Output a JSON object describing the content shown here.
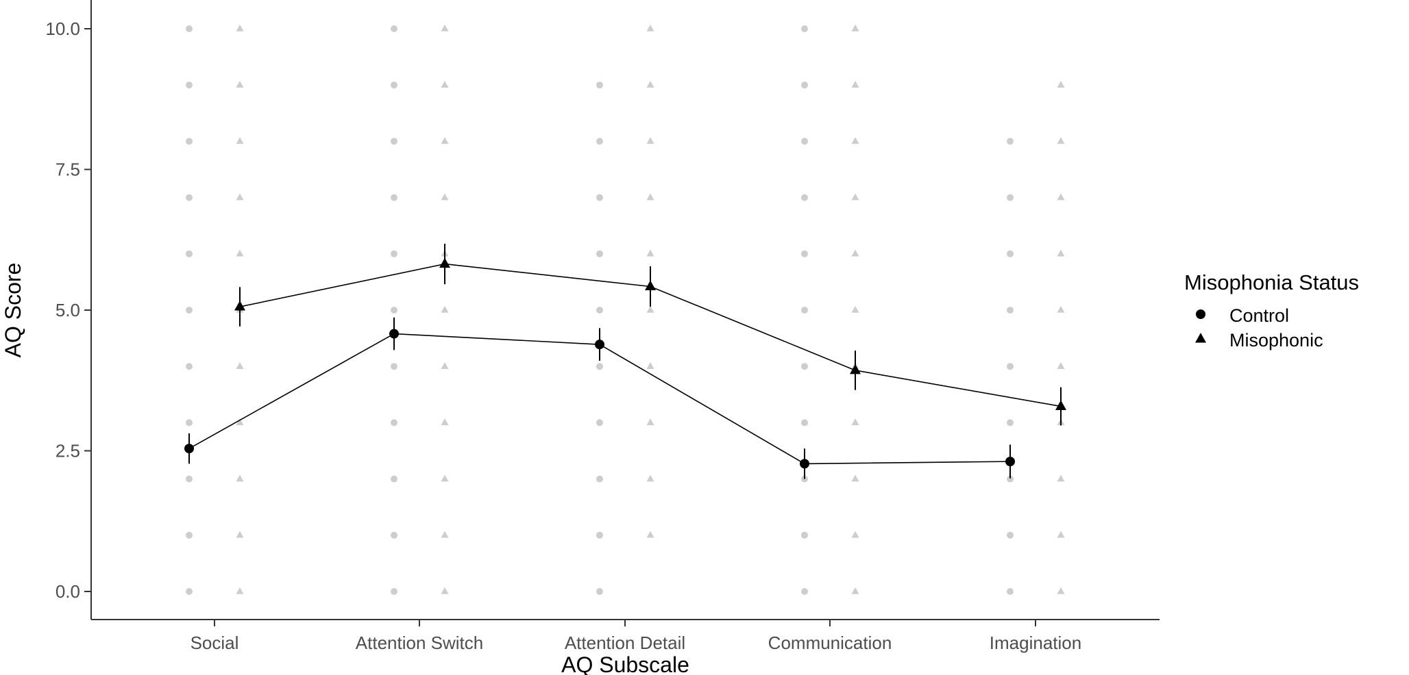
{
  "chart_data": {
    "type": "scatter",
    "title": "",
    "xlabel": "AQ Subscale",
    "ylabel": "AQ Score",
    "categories": [
      "Social",
      "Attention Switch",
      "Attention Detail",
      "Communication",
      "Imagination"
    ],
    "ylim": [
      -0.5,
      10.5
    ],
    "yticks": [
      0,
      2.5,
      5,
      7.5,
      10
    ],
    "ytick_labels": [
      "0.0",
      "2.5",
      "5.0",
      "7.5",
      "10.0"
    ],
    "grid": false,
    "legend": {
      "title": "Misophonia Status",
      "position": "right"
    },
    "series": [
      {
        "name": "Control",
        "marker": "circle",
        "means": [
          2.54,
          4.58,
          4.39,
          2.27,
          2.31
        ],
        "error": [
          0.27,
          0.29,
          0.29,
          0.27,
          0.3
        ],
        "raw_values": [
          [
            0,
            1,
            2,
            3,
            4,
            5,
            6,
            7,
            8,
            9,
            10
          ],
          [
            0,
            1,
            2,
            3,
            4,
            5,
            6,
            7,
            8,
            9,
            10
          ],
          [
            0,
            1,
            2,
            3,
            4,
            5,
            6,
            7,
            8,
            9
          ],
          [
            0,
            1,
            2,
            3,
            4,
            5,
            6,
            7,
            8,
            9,
            10
          ],
          [
            0,
            1,
            2,
            3,
            4,
            5,
            6,
            7,
            8
          ]
        ]
      },
      {
        "name": "Misophonic",
        "marker": "triangle",
        "means": [
          5.06,
          5.82,
          5.42,
          3.93,
          3.29
        ],
        "error": [
          0.35,
          0.36,
          0.36,
          0.35,
          0.34
        ],
        "raw_values": [
          [
            0,
            1,
            2,
            3,
            4,
            5,
            6,
            7,
            8,
            9,
            10
          ],
          [
            0,
            1,
            2,
            3,
            4,
            5,
            6,
            7,
            8,
            9,
            10
          ],
          [
            1,
            2,
            3,
            4,
            5,
            6,
            7,
            8,
            9,
            10
          ],
          [
            0,
            1,
            2,
            3,
            4,
            5,
            6,
            7,
            8,
            9,
            10
          ],
          [
            0,
            1,
            2,
            3,
            4,
            5,
            6,
            7,
            8,
            9
          ]
        ]
      }
    ],
    "colors": {
      "raw_points": "#c4c4c4",
      "summary": "#000000",
      "axis": "#333333"
    }
  }
}
